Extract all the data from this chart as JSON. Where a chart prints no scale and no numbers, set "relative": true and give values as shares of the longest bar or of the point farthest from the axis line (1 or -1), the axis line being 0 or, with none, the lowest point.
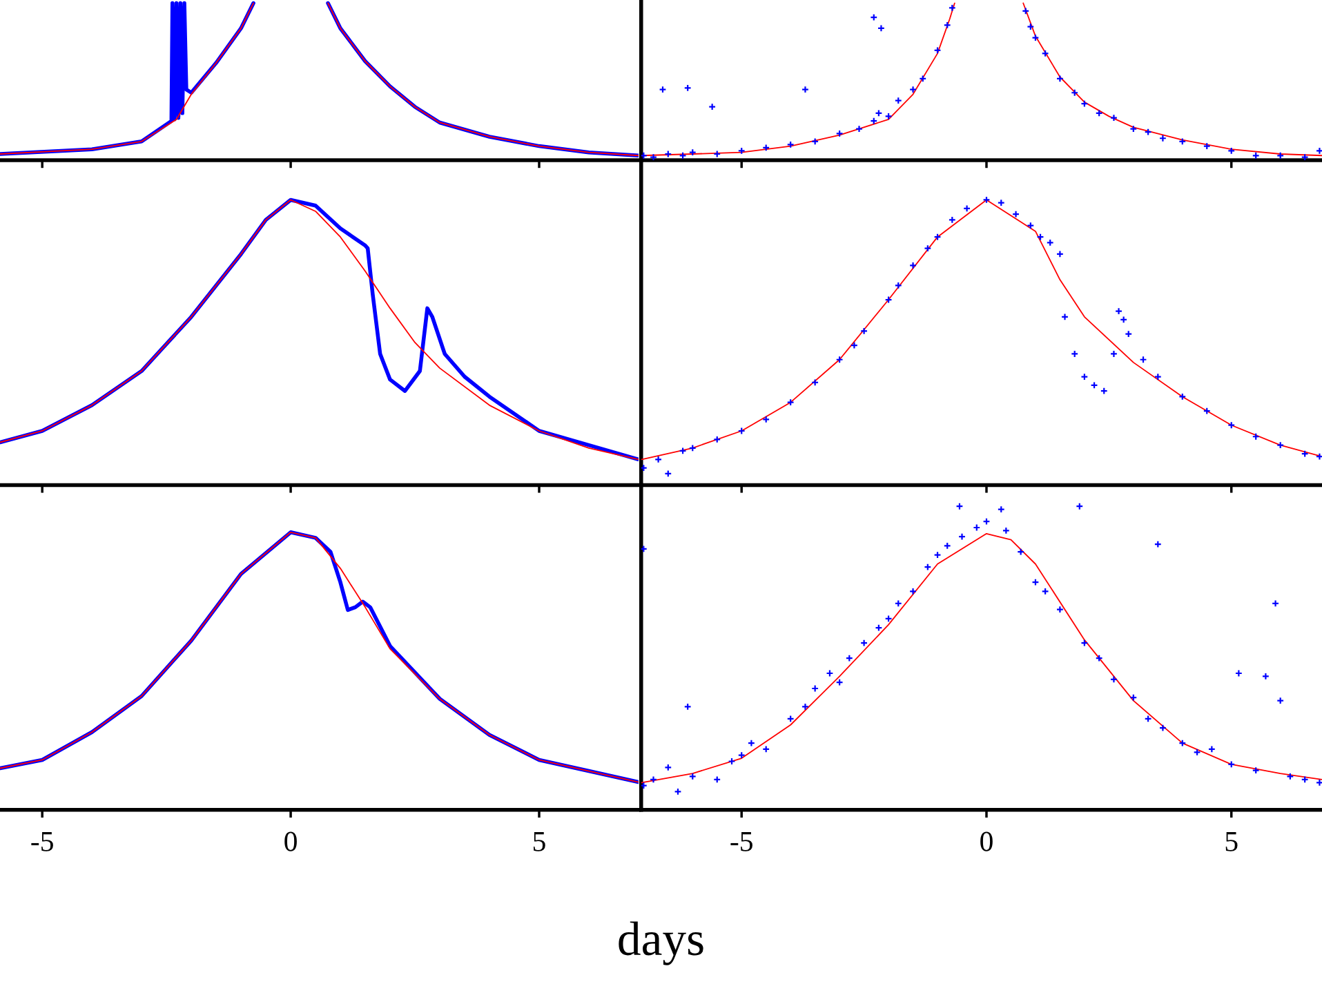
{
  "chart_data": [
    {
      "type": "line",
      "xlim": [
        -5.85,
        7.0
      ],
      "xticks": [
        -5,
        0,
        5
      ],
      "relative": true,
      "tick_labels": false,
      "series": [
        {
          "color": "#0000ff",
          "x": [
            -5.85,
            -4,
            -3,
            -2.4,
            -2.38,
            -2.34,
            -2.3,
            -2.26,
            -2.22,
            -2.18,
            -2.14,
            -2.1,
            -2,
            -1.5,
            -1,
            -0.75,
            0,
            0.75,
            1,
            1.5,
            2,
            2.5,
            3,
            4,
            5,
            6,
            7
          ],
          "values": [
            0.04,
            0.07,
            0.12,
            0.25,
            1,
            0.26,
            1,
            0.27,
            1,
            0.3,
            1,
            0.45,
            0.43,
            0.62,
            0.84,
            1,
            null,
            1,
            0.84,
            0.63,
            0.47,
            0.34,
            0.24,
            0.15,
            0.09,
            0.05,
            0.03
          ]
        },
        {
          "color": "#ff0000",
          "x": [
            -5.85,
            -4,
            -3,
            -2.3,
            -2,
            -1.5,
            -1,
            -0.75,
            0,
            0.75,
            1,
            1.5,
            2,
            2.5,
            3,
            4,
            5,
            6,
            7
          ],
          "values": [
            0.04,
            0.07,
            0.12,
            0.26,
            0.42,
            0.62,
            0.84,
            1,
            null,
            1,
            0.84,
            0.63,
            0.47,
            0.34,
            0.24,
            0.15,
            0.09,
            0.05,
            0.03
          ]
        }
      ]
    },
    {
      "type": "line",
      "xlim": [
        -7.05,
        6.85
      ],
      "xticks": [
        -5,
        0,
        5
      ],
      "relative": true,
      "tick_labels": false,
      "series": [
        {
          "type": "scatter",
          "marker": "cross",
          "color": "#0000ff",
          "x": [
            -7,
            -6.8,
            -6.61,
            -6.5,
            -6.2,
            -6.1,
            -6,
            -5.6,
            -5.5,
            -5,
            -4.5,
            -4,
            -3.7,
            -3.5,
            -3,
            -2.6,
            -2.3,
            -2.3,
            -2.2,
            -2.15,
            -2,
            -1.8,
            -1.5,
            -1.3,
            -1,
            -0.8,
            -0.7,
            0.8,
            0.9,
            1,
            1.2,
            1.5,
            1.8,
            2,
            2.3,
            2.6,
            3,
            3.3,
            3.6,
            4,
            4.5,
            5,
            5.5,
            6,
            6.5,
            6.8
          ],
          "values": [
            0.03,
            0.02,
            0.45,
            0.04,
            0.03,
            0.46,
            0.05,
            0.34,
            0.04,
            0.06,
            0.08,
            0.1,
            0.45,
            0.12,
            0.17,
            0.2,
            0.25,
            0.91,
            0.3,
            0.84,
            0.28,
            0.38,
            0.45,
            0.52,
            0.7,
            0.86,
            0.97,
            0.95,
            0.85,
            0.78,
            0.68,
            0.52,
            0.43,
            0.36,
            0.3,
            0.27,
            0.2,
            0.18,
            0.14,
            0.12,
            0.09,
            0.06,
            0.03,
            0.03,
            0.02,
            0.06
          ]
        },
        {
          "color": "#ff0000",
          "x": [
            -7.04,
            -6,
            -5,
            -4,
            -3,
            -2,
            -1.5,
            -1,
            -0.75,
            -0.65,
            0,
            0.75,
            1,
            1.5,
            2,
            2.5,
            3,
            4,
            5,
            6,
            6.85
          ],
          "values": [
            0.03,
            0.04,
            0.05,
            0.09,
            0.16,
            0.26,
            0.42,
            0.68,
            0.9,
            1,
            null,
            1,
            0.79,
            0.53,
            0.37,
            0.28,
            0.21,
            0.13,
            0.07,
            0.04,
            0.03
          ]
        }
      ]
    },
    {
      "type": "line",
      "xlim": [
        -5.85,
        7.0
      ],
      "xticks": [
        -5,
        0,
        5
      ],
      "relative": true,
      "tick_labels": false,
      "series": [
        {
          "color": "#0000ff",
          "x": [
            -5.85,
            -5,
            -4,
            -3,
            -2,
            -1,
            -0.5,
            0,
            0.5,
            1,
            1.5,
            1.55,
            1.65,
            1.8,
            2.0,
            2.3,
            2.6,
            2.75,
            2.85,
            3.1,
            3.5,
            4,
            5,
            6,
            7
          ],
          "values": [
            0.15,
            0.19,
            0.28,
            0.4,
            0.59,
            0.81,
            0.93,
            1.0,
            0.98,
            0.9,
            0.84,
            0.83,
            0.67,
            0.46,
            0.37,
            0.33,
            0.4,
            0.62,
            0.59,
            0.46,
            0.38,
            0.31,
            0.19,
            0.14,
            0.09
          ]
        },
        {
          "color": "#ff0000",
          "x": [
            -5.85,
            -5,
            -4,
            -3,
            -2,
            -1,
            -0.5,
            0,
            0.5,
            1,
            1.5,
            2,
            2.5,
            3,
            4,
            5,
            6,
            7
          ],
          "values": [
            0.15,
            0.19,
            0.28,
            0.4,
            0.59,
            0.81,
            0.93,
            1.0,
            0.96,
            0.87,
            0.75,
            0.62,
            0.5,
            0.41,
            0.28,
            0.19,
            0.13,
            0.09
          ]
        }
      ]
    },
    {
      "type": "line",
      "xlim": [
        -7.05,
        6.85
      ],
      "xticks": [
        -5,
        0,
        5
      ],
      "relative": true,
      "tick_labels": false,
      "series": [
        {
          "type": "scatter",
          "marker": "cross",
          "color": "#0000ff",
          "x": [
            -7,
            -6.7,
            -6.5,
            -6.2,
            -6,
            -5.5,
            -5,
            -4.5,
            -4,
            -3.5,
            -3,
            -2.7,
            -2.5,
            -2,
            -1.8,
            -1.5,
            -1.2,
            -1,
            -0.7,
            -0.4,
            0,
            0.3,
            0.6,
            0.9,
            1.1,
            1.3,
            1.5,
            1.6,
            1.8,
            2,
            2.2,
            2.4,
            2.6,
            2.7,
            2.8,
            2.9,
            3.2,
            3.5,
            4,
            4.5,
            5,
            5.5,
            6,
            6.5,
            6.8
          ],
          "values": [
            0.06,
            0.09,
            0.04,
            0.12,
            0.13,
            0.16,
            0.19,
            0.23,
            0.29,
            0.36,
            0.44,
            0.49,
            0.54,
            0.65,
            0.7,
            0.77,
            0.83,
            0.87,
            0.93,
            0.97,
            1,
            0.99,
            0.95,
            0.91,
            0.87,
            0.85,
            0.81,
            0.59,
            0.46,
            0.38,
            0.35,
            0.33,
            0.46,
            0.61,
            0.58,
            0.53,
            0.44,
            0.38,
            0.31,
            0.26,
            0.21,
            0.17,
            0.14,
            0.11,
            0.1
          ]
        },
        {
          "color": "#ff0000",
          "x": [
            -7.04,
            -6,
            -5,
            -4,
            -3,
            -2,
            -1,
            0,
            1,
            1.5,
            2,
            3,
            4,
            5,
            6,
            6.85
          ],
          "values": [
            0.09,
            0.13,
            0.19,
            0.29,
            0.44,
            0.65,
            0.87,
            1,
            0.89,
            0.72,
            0.59,
            0.43,
            0.31,
            0.21,
            0.14,
            0.1
          ]
        }
      ]
    },
    {
      "type": "line",
      "xlim": [
        -5.85,
        7.0
      ],
      "xticks": [
        -5,
        0,
        5
      ],
      "relative": true,
      "tick_labels": "x",
      "xlabel": "days",
      "series": [
        {
          "color": "#0000ff",
          "x": [
            -5.85,
            -5,
            -4,
            -3,
            -2,
            -1,
            0,
            0.5,
            0.8,
            1.0,
            1.15,
            1.3,
            1.45,
            1.6,
            2,
            3,
            4,
            5,
            6,
            7
          ],
          "values": [
            0.15,
            0.18,
            0.28,
            0.41,
            0.61,
            0.85,
            1.0,
            0.98,
            0.93,
            0.82,
            0.72,
            0.73,
            0.75,
            0.73,
            0.59,
            0.4,
            0.27,
            0.18,
            0.14,
            0.1
          ]
        },
        {
          "color": "#ff0000",
          "x": [
            -5.85,
            -5,
            -4,
            -3,
            -2,
            -1,
            0,
            0.5,
            1,
            1.5,
            2,
            3,
            4,
            5,
            6,
            7
          ],
          "values": [
            0.15,
            0.18,
            0.28,
            0.41,
            0.61,
            0.85,
            1.0,
            0.98,
            0.87,
            0.73,
            0.58,
            0.4,
            0.27,
            0.18,
            0.14,
            0.1
          ]
        }
      ]
    },
    {
      "type": "line",
      "xlim": [
        -7.05,
        6.85
      ],
      "xticks": [
        -5,
        0,
        5
      ],
      "relative": true,
      "tick_labels": "x",
      "series": [
        {
          "type": "scatter",
          "marker": "cross",
          "color": "#0000ff",
          "x": [
            -7,
            -7,
            -6.8,
            -6.5,
            -6.3,
            -6.1,
            -6,
            -5.5,
            -5.2,
            -5,
            -4.8,
            -4.5,
            -4,
            -3.7,
            -3.5,
            -3.2,
            -3,
            -2.8,
            -2.5,
            -2.2,
            -2,
            -1.8,
            -1.5,
            -1.2,
            -1,
            -0.8,
            -0.55,
            -0.5,
            -0.2,
            0,
            0.3,
            0.4,
            0.7,
            1,
            1.2,
            1.5,
            1.9,
            2,
            2.3,
            2.6,
            3,
            3.3,
            3.5,
            3.6,
            4,
            4.3,
            4.6,
            5,
            5.15,
            5.5,
            5.7,
            5.9,
            6,
            6.2,
            6.5,
            6.8
          ],
          "values": [
            0.08,
            0.86,
            0.1,
            0.14,
            0.06,
            0.34,
            0.11,
            0.1,
            0.16,
            0.18,
            0.22,
            0.2,
            0.3,
            0.34,
            0.4,
            0.45,
            0.42,
            0.5,
            0.55,
            0.6,
            0.63,
            0.68,
            0.72,
            0.8,
            0.84,
            0.87,
            1.0,
            0.9,
            0.93,
            0.95,
            0.99,
            0.92,
            0.85,
            0.75,
            0.72,
            0.66,
            1.0,
            0.55,
            0.5,
            0.43,
            0.37,
            0.3,
            0.875,
            0.27,
            0.22,
            0.19,
            0.2,
            0.15,
            0.45,
            0.13,
            0.44,
            0.68,
            0.36,
            0.11,
            0.1,
            0.09
          ]
        },
        {
          "color": "#ff0000",
          "x": [
            -7.04,
            -6,
            -5,
            -4,
            -3,
            -2,
            -1,
            0,
            0.5,
            1,
            2,
            3,
            4,
            5,
            6,
            6.85
          ],
          "values": [
            0.09,
            0.12,
            0.17,
            0.28,
            0.44,
            0.61,
            0.81,
            0.91,
            0.89,
            0.81,
            0.56,
            0.36,
            0.22,
            0.15,
            0.12,
            0.1
          ]
        }
      ]
    }
  ]
}
